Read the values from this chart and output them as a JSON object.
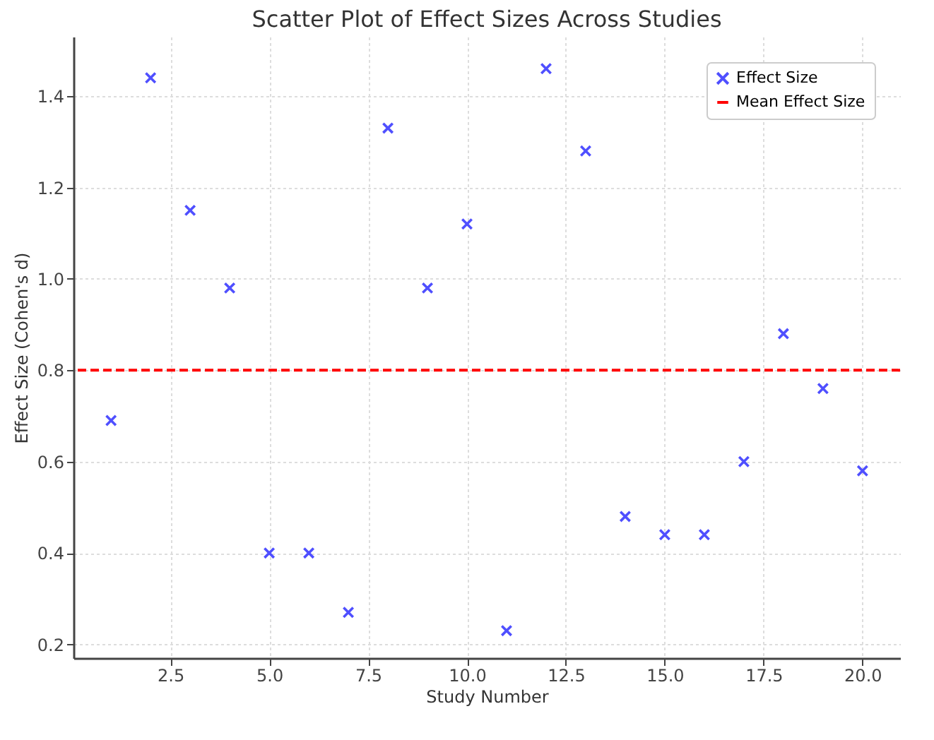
{
  "chart_data": {
    "type": "scatter",
    "title": "Scatter Plot of Effect Sizes Across Studies",
    "xlabel": "Study Number",
    "ylabel": "Effect Size (Cohen's d)",
    "x": [
      1,
      2,
      3,
      4,
      5,
      6,
      7,
      8,
      9,
      10,
      11,
      12,
      13,
      14,
      15,
      16,
      17,
      18,
      19,
      20
    ],
    "series": [
      {
        "name": "Effect Size",
        "color": "#4f4fff",
        "values": [
          0.69,
          1.44,
          1.15,
          0.98,
          0.4,
          0.4,
          0.27,
          1.33,
          0.98,
          1.12,
          0.23,
          1.46,
          1.28,
          0.48,
          0.44,
          0.44,
          0.6,
          0.88,
          0.76,
          0.58
        ]
      }
    ],
    "ref_lines": [
      {
        "axis": "y",
        "value": 0.8,
        "label": "Mean Effect Size",
        "color": "#ff0000",
        "line_style": "dashed"
      }
    ],
    "xlim": [
      0.05,
      20.95
    ],
    "ylim": [
      0.17,
      1.53
    ],
    "xticks": [
      {
        "value": 2.5,
        "label": "2.5"
      },
      {
        "value": 5,
        "label": "5.0"
      },
      {
        "value": 7.5,
        "label": "7.5"
      },
      {
        "value": 10,
        "label": "10.0"
      },
      {
        "value": 12.5,
        "label": "12.5"
      },
      {
        "value": 15,
        "label": "15.0"
      },
      {
        "value": 17.5,
        "label": "17.5"
      },
      {
        "value": 20,
        "label": "20.0"
      }
    ],
    "yticks": [
      {
        "value": 0.2,
        "label": "0.2"
      },
      {
        "value": 0.4,
        "label": "0.4"
      },
      {
        "value": 0.6,
        "label": "0.6"
      },
      {
        "value": 0.8,
        "label": "0.8"
      },
      {
        "value": 1.0,
        "label": "1.0"
      },
      {
        "value": 1.2,
        "label": "1.2"
      },
      {
        "value": 1.4,
        "label": "1.4"
      }
    ],
    "grid": true,
    "legend": "top right",
    "marker": "cross"
  }
}
